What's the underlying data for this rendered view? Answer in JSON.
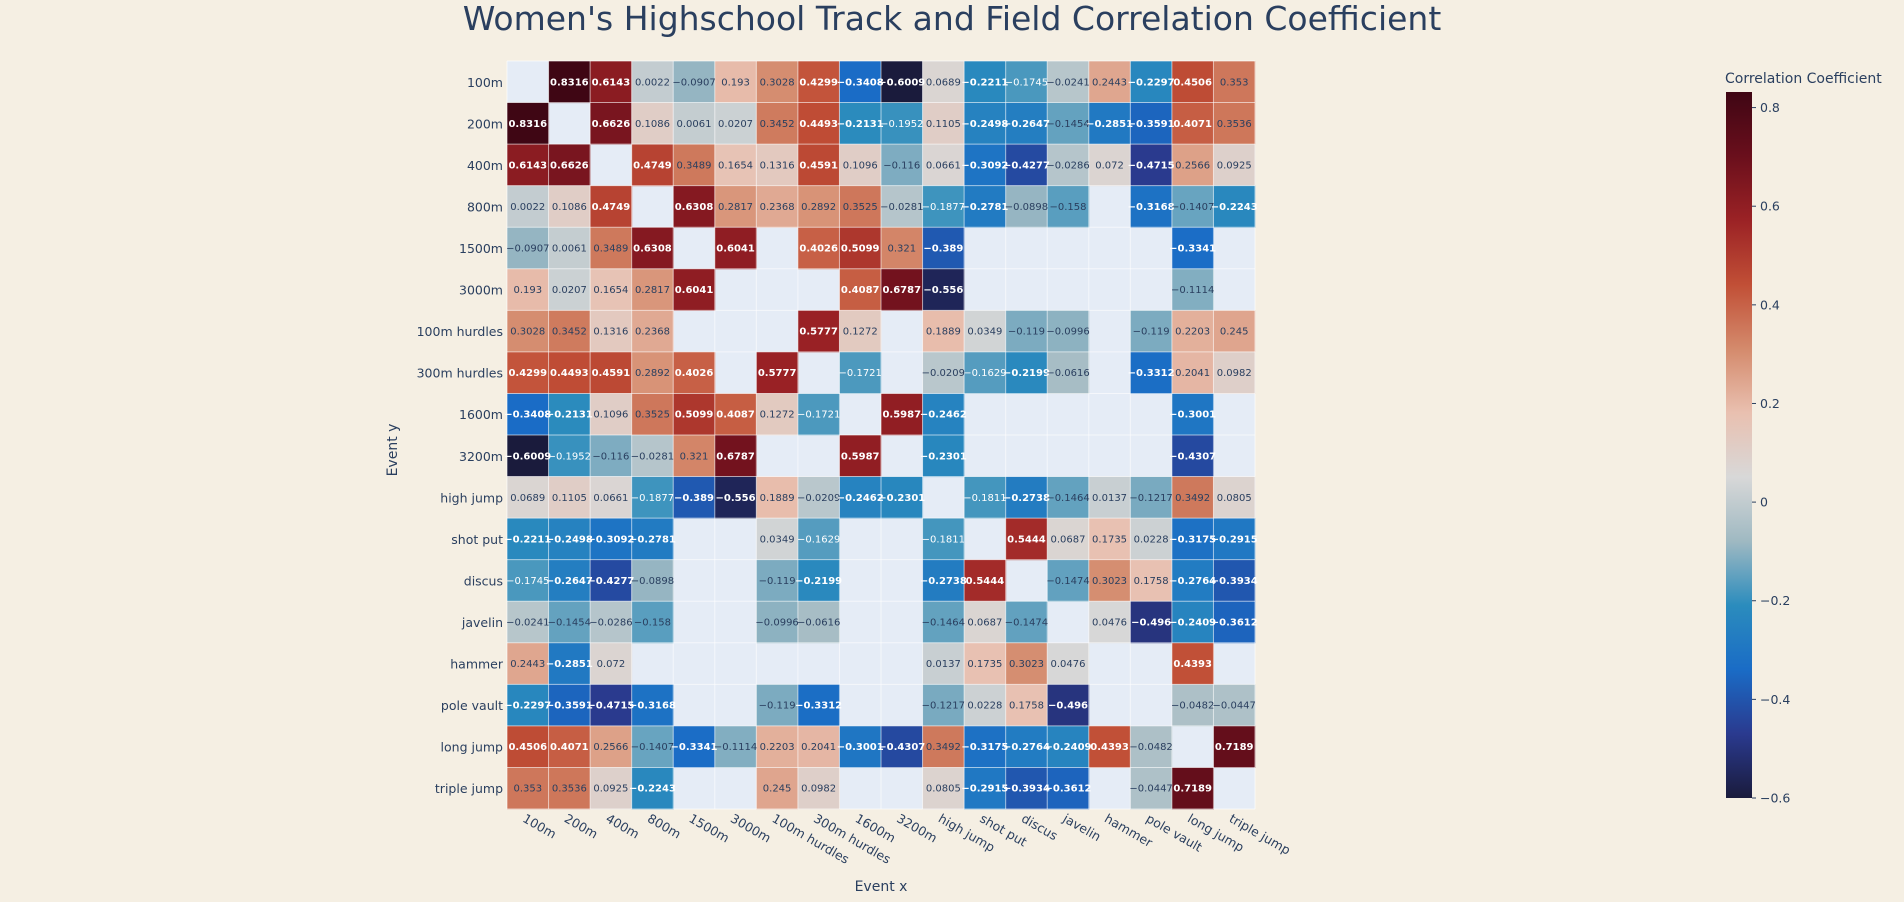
{
  "chart_data": {
    "type": "heatmap",
    "title": "Women's Highschool Track and Field Correlation Coefficient",
    "xlabel": "Event x",
    "ylabel": "Event y",
    "colorbar_title": "Correlation Coefficient",
    "colorbar_ticks": [
      0.8,
      0.6,
      0.4,
      0.2,
      0,
      -0.2,
      -0.4,
      -0.6
    ],
    "colorbar_tick_labels": [
      "0.8",
      "0.6",
      "0.4",
      "0.2",
      "0",
      "−0.2",
      "−0.4",
      "−0.6"
    ],
    "zmin": -0.6,
    "zmax": 0.8316,
    "background_color": "#f5efe3",
    "plot_background_color": "#e5ecf6",
    "colorscale": [
      "#1a1b3c",
      "#2a3a8f",
      "#1a6cc6",
      "#2b8cbd",
      "#9fb9c2",
      "#d8d8d8",
      "#e9c0b0",
      "#d48a6c",
      "#c14f36",
      "#9b2225",
      "#6a0f1c",
      "#3f0614"
    ],
    "categories": [
      "100m",
      "200m",
      "400m",
      "800m",
      "1500m",
      "3000m",
      "100m hurdles",
      "300m hurdles",
      "1600m",
      "3200m",
      "high jump",
      "shot put",
      "discus",
      "javelin",
      "hammer",
      "pole vault",
      "long jump",
      "triple jump"
    ],
    "z": [
      [
        null,
        0.8316,
        0.6143,
        0.0022,
        -0.0907,
        0.193,
        0.3028,
        0.4299,
        -0.3408,
        -0.6009,
        0.0689,
        -0.2211,
        -0.1745,
        -0.0241,
        0.2443,
        -0.2297,
        0.4506,
        0.353
      ],
      [
        0.8316,
        null,
        0.6626,
        0.1086,
        0.0061,
        0.0207,
        0.3452,
        0.4493,
        -0.2131,
        -0.1952,
        0.1105,
        -0.2498,
        -0.2647,
        -0.1454,
        -0.2851,
        -0.3591,
        0.4071,
        0.3536
      ],
      [
        0.6143,
        0.6626,
        null,
        0.4749,
        0.3489,
        0.1654,
        0.1316,
        0.4591,
        0.1096,
        -0.116,
        0.0661,
        -0.3092,
        -0.4277,
        -0.0286,
        0.072,
        -0.4715,
        0.2566,
        0.0925
      ],
      [
        0.0022,
        0.1086,
        0.4749,
        null,
        0.6308,
        0.2817,
        0.2368,
        0.2892,
        0.3525,
        -0.0281,
        -0.1877,
        -0.2781,
        -0.0898,
        -0.158,
        null,
        -0.3168,
        -0.1407,
        -0.2243
      ],
      [
        -0.0907,
        0.0061,
        0.3489,
        0.6308,
        null,
        0.6041,
        null,
        0.4026,
        0.5099,
        0.321,
        -0.389,
        null,
        null,
        null,
        null,
        null,
        -0.3341,
        null
      ],
      [
        0.193,
        0.0207,
        0.1654,
        0.2817,
        0.6041,
        null,
        null,
        null,
        0.4087,
        0.6787,
        -0.556,
        null,
        null,
        null,
        null,
        null,
        -0.1114,
        null
      ],
      [
        0.3028,
        0.3452,
        0.1316,
        0.2368,
        null,
        null,
        null,
        0.5777,
        0.1272,
        null,
        0.1889,
        0.0349,
        -0.119,
        -0.0996,
        null,
        -0.119,
        0.2203,
        0.245
      ],
      [
        0.4299,
        0.4493,
        0.4591,
        0.2892,
        0.4026,
        null,
        0.5777,
        null,
        -0.1721,
        null,
        -0.0209,
        -0.1629,
        -0.2199,
        -0.0616,
        null,
        -0.3312,
        0.2041,
        0.0982
      ],
      [
        -0.3408,
        -0.2131,
        0.1096,
        0.3525,
        0.5099,
        0.4087,
        0.1272,
        -0.1721,
        null,
        0.5987,
        -0.2462,
        null,
        null,
        null,
        null,
        null,
        -0.3001,
        null
      ],
      [
        -0.6009,
        -0.1952,
        -0.116,
        -0.0281,
        0.321,
        0.6787,
        null,
        null,
        0.5987,
        null,
        -0.2301,
        null,
        null,
        null,
        null,
        null,
        -0.4307,
        null
      ],
      [
        0.0689,
        0.1105,
        0.0661,
        -0.1877,
        -0.389,
        -0.556,
        0.1889,
        -0.0209,
        -0.2462,
        -0.2301,
        null,
        -0.1811,
        -0.2738,
        -0.1464,
        0.0137,
        -0.1217,
        0.3492,
        0.0805
      ],
      [
        -0.2211,
        -0.2498,
        -0.3092,
        -0.2781,
        null,
        null,
        0.0349,
        -0.1629,
        null,
        null,
        -0.1811,
        null,
        0.5444,
        0.0687,
        0.1735,
        0.0228,
        -0.3175,
        -0.2915
      ],
      [
        -0.1745,
        -0.2647,
        -0.4277,
        -0.0898,
        null,
        null,
        -0.119,
        -0.2199,
        null,
        null,
        -0.2738,
        0.5444,
        null,
        -0.1474,
        0.3023,
        0.1758,
        -0.2764,
        -0.3934
      ],
      [
        -0.0241,
        -0.1454,
        -0.0286,
        -0.158,
        null,
        null,
        -0.0996,
        -0.0616,
        null,
        null,
        -0.1464,
        0.0687,
        -0.1474,
        null,
        0.0476,
        -0.496,
        -0.2409,
        -0.3612
      ],
      [
        0.2443,
        -0.2851,
        0.072,
        null,
        null,
        null,
        null,
        null,
        null,
        null,
        0.0137,
        0.1735,
        0.3023,
        0.0476,
        null,
        null,
        0.4393,
        null
      ],
      [
        -0.2297,
        -0.3591,
        -0.4715,
        -0.3168,
        null,
        null,
        -0.119,
        -0.3312,
        null,
        null,
        -0.1217,
        0.0228,
        0.1758,
        -0.496,
        null,
        null,
        -0.0482,
        -0.0447
      ],
      [
        0.4506,
        0.4071,
        0.2566,
        -0.1407,
        -0.3341,
        -0.1114,
        0.2203,
        0.2041,
        -0.3001,
        -0.4307,
        0.3492,
        -0.3175,
        -0.2764,
        -0.2409,
        0.4393,
        -0.0482,
        null,
        0.7189
      ],
      [
        0.353,
        0.3536,
        0.0925,
        -0.2243,
        null,
        null,
        0.245,
        0.0982,
        null,
        null,
        0.0805,
        -0.2915,
        -0.3934,
        -0.3612,
        null,
        -0.0447,
        0.7189,
        null
      ]
    ]
  }
}
